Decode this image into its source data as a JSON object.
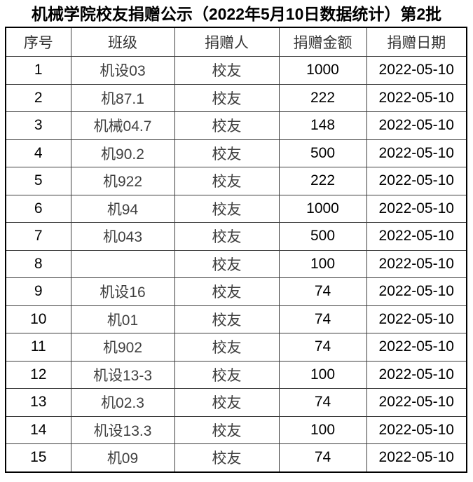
{
  "title": "机械学院校友捐赠公示（2022年5月10日数据统计）第2批",
  "table": {
    "headers": [
      "序号",
      "班级",
      "捐赠人",
      "捐赠金额",
      "捐赠日期"
    ],
    "rows": [
      [
        "1",
        "机设03",
        "校友",
        "1000",
        "2022-05-10"
      ],
      [
        "2",
        "机87.1",
        "校友",
        "222",
        "2022-05-10"
      ],
      [
        "3",
        "机械04.7",
        "校友",
        "148",
        "2022-05-10"
      ],
      [
        "4",
        "机90.2",
        "校友",
        "500",
        "2022-05-10"
      ],
      [
        "5",
        "机922",
        "校友",
        "222",
        "2022-05-10"
      ],
      [
        "6",
        "机94",
        "校友",
        "1000",
        "2022-05-10"
      ],
      [
        "7",
        "机043",
        "校友",
        "500",
        "2022-05-10"
      ],
      [
        "8",
        "",
        "校友",
        "100",
        "2022-05-10"
      ],
      [
        "9",
        "机设16",
        "校友",
        "74",
        "2022-05-10"
      ],
      [
        "10",
        "机01",
        "校友",
        "74",
        "2022-05-10"
      ],
      [
        "11",
        "机902",
        "校友",
        "74",
        "2022-05-10"
      ],
      [
        "12",
        "机设13-3",
        "校友",
        "100",
        "2022-05-10"
      ],
      [
        "13",
        "机02.3",
        "校友",
        "74",
        "2022-05-10"
      ],
      [
        "14",
        "机设13.3",
        "校友",
        "100",
        "2022-05-10"
      ],
      [
        "15",
        "机09",
        "校友",
        "74",
        "2022-05-10"
      ]
    ]
  },
  "colors": {
    "background": "#ffffff",
    "text": "#000000",
    "chinese_text": "#3f3f3f",
    "outer_border": "#000000",
    "inner_border": "#3d3d3d"
  }
}
